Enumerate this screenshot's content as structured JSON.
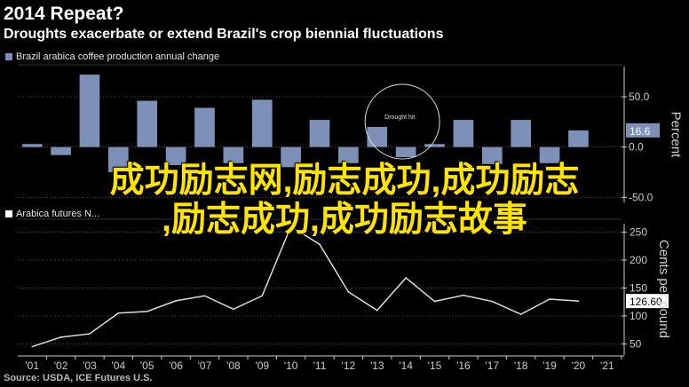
{
  "title": "2014 Repeat?",
  "subtitle": "Droughts exacerbate or extend Brazil's crop biennial fluctuations",
  "source": "Source: USDA, ICE Futures U.S.",
  "overlay": {
    "line1": "成功励志网,励志成功,成功励志",
    "line2": ",励志成功,成功励志故事"
  },
  "colors": {
    "bar": "#7d90b8",
    "line": "#dcdcdc",
    "tag_bar": "#7d90b8",
    "tag_line": "#ffffff",
    "overlay_text": "#ffe400"
  },
  "chart_data": [
    {
      "type": "bar",
      "legend": "Brazil arabica coffee production annual change",
      "ylabel": "Percent",
      "ylim": [
        -55,
        80
      ],
      "yticks": [
        50.0,
        0.0,
        -50.0
      ],
      "ytick_labels": [
        "50.0",
        "0.0",
        "-50.0"
      ],
      "categories": [
        "'01",
        "'02",
        "'03",
        "'04",
        "'05",
        "'06",
        "'07",
        "'08",
        "'09",
        "'10",
        "'11",
        "'12",
        "'13",
        "'14",
        "'15",
        "'16",
        "'17",
        "'18",
        "'19",
        "'20",
        "'21"
      ],
      "values": [
        3,
        -8,
        72,
        -25,
        46,
        -18,
        39,
        -16,
        47,
        -20,
        27,
        -16,
        20,
        -10,
        3,
        27,
        -17,
        27,
        -16,
        16.6,
        null
      ],
      "last_value_label": "16.6",
      "annotation": "Drought hit"
    },
    {
      "type": "line",
      "legend": "Arabica futures N...",
      "ylabel": "Cents per pound",
      "ylim": [
        30,
        265
      ],
      "yticks": [
        250,
        200,
        150,
        100,
        50
      ],
      "categories": [
        "'01",
        "'02",
        "'03",
        "'04",
        "'05",
        "'06",
        "'07",
        "'08",
        "'09",
        "'10",
        "'11",
        "'12",
        "'13",
        "'14",
        "'15",
        "'16",
        "'17",
        "'18",
        "'19",
        "'20",
        "'21"
      ],
      "values": [
        45,
        62,
        68,
        105,
        108,
        127,
        136,
        112,
        136,
        260,
        228,
        143,
        110,
        168,
        126,
        137,
        126,
        103,
        130,
        126.6,
        null
      ],
      "last_value_label": "126.60"
    }
  ]
}
